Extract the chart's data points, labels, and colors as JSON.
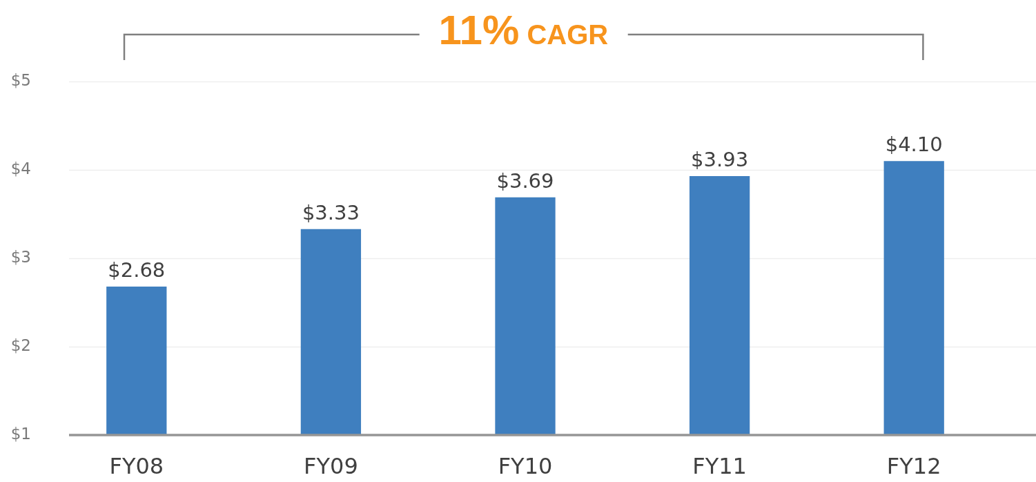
{
  "chart_data": {
    "type": "bar",
    "categories": [
      "FY08",
      "FY09",
      "FY10",
      "FY11",
      "FY12"
    ],
    "values": [
      2.68,
      3.33,
      3.69,
      3.93,
      4.1
    ],
    "color": "#3f7fbf",
    "value_labels": [
      "$2.68",
      "$3.33",
      "$3.69",
      "$3.93",
      "$4.10"
    ],
    "ylim": [
      1,
      5
    ],
    "yticks": [
      {
        "value": 1,
        "label": "$1"
      },
      {
        "value": 2,
        "label": "$2"
      },
      {
        "value": 3,
        "label": "$3"
      },
      {
        "value": 4,
        "label": "$4"
      },
      {
        "value": 5,
        "label": "$5"
      }
    ],
    "grid": "y",
    "annotations": [
      "11% CAGR"
    ]
  }
}
